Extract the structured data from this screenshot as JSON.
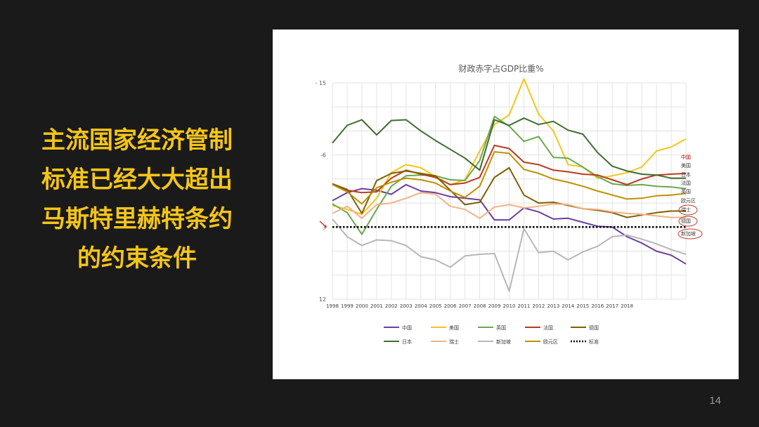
{
  "slide": {
    "lines": [
      "主流国家经济管制",
      "标准已经大大超出",
      "马斯特里赫特条约",
      "的约束条件"
    ],
    "page_number": "14"
  },
  "chart_data": {
    "type": "line",
    "title": "财政赤字占GDP比重%",
    "y_axis_inverted": true,
    "ylim": [
      -15,
      12
    ],
    "y_ticks": [
      -15,
      -6,
      3,
      12
    ],
    "y_tick_labels": [
      "- 15",
      "-6",
      "3",
      "12"
    ],
    "x": [
      "1998",
      "1999",
      "2000",
      "2001",
      "2002",
      "2003",
      "2004",
      "2005",
      "2006",
      "2007",
      "2008",
      "2009",
      "2010",
      "2011",
      "2012",
      "2013",
      "2014",
      "2015",
      "2016",
      "2017",
      "2018",
      "2019",
      "2020",
      "2021",
      "2022"
    ],
    "x_tick_labels": [
      "1998",
      "1999",
      "2000",
      "2001",
      "2002",
      "2003",
      "2004",
      "2005",
      "2006",
      "2007",
      "2008",
      "2009",
      "2010",
      "2011",
      "2012",
      "2013",
      "2014",
      "2015",
      "2016",
      "2017",
      "2018"
    ],
    "grid": true,
    "legend_position": "bottom",
    "series": [
      {
        "name": "中国",
        "color": "#6a3fa0",
        "values": [
          -0.3,
          -1.3,
          -1.8,
          -1.6,
          -1.1,
          -2.3,
          -1.5,
          -1.3,
          -0.8,
          -0.6,
          -0.4,
          2.1,
          2.1,
          0.6,
          1.1,
          2.0,
          1.9,
          2.4,
          2.9,
          3.0,
          4.2,
          5.0,
          6.0,
          6.5,
          7.6
        ]
      },
      {
        "name": "美国",
        "color": "#f5c518",
        "values": [
          0.3,
          0.8,
          1.4,
          -0.6,
          -3.8,
          -4.8,
          -4.4,
          -3.3,
          -2.3,
          -2.9,
          -6.5,
          -9.8,
          -11.0,
          -15.5,
          -11.1,
          -9.0,
          -4.8,
          -4.5,
          -3.1,
          -3.4,
          -3.8,
          -4.5,
          -6.5,
          -7.0,
          -8.0
        ]
      },
      {
        "name": "英国",
        "color": "#6aa84f",
        "values": [
          0.1,
          1.2,
          3.9,
          0.8,
          -2.1,
          -3.4,
          -3.5,
          -3.4,
          -2.9,
          -2.8,
          -5.3,
          -10.8,
          -9.6,
          -7.7,
          -8.3,
          -5.7,
          -5.6,
          -4.5,
          -3.3,
          -2.4,
          -2.2,
          -2.3,
          -2.1,
          -2.0,
          -1.8
        ]
      },
      {
        "name": "法国",
        "color": "#b83c1f",
        "values": [
          -2.4,
          -1.6,
          -1.3,
          -1.4,
          -3.1,
          -4.1,
          -3.6,
          -3.2,
          -2.3,
          -2.5,
          -3.2,
          -7.2,
          -6.8,
          -5.1,
          -4.8,
          -4.1,
          -3.9,
          -3.6,
          -3.5,
          -2.9,
          -2.3,
          -3.0,
          -3.5,
          -3.6,
          -3.7
        ]
      },
      {
        "name": "德国",
        "color": "#7f6000",
        "values": [
          -2.4,
          -1.7,
          1.3,
          -2.8,
          -3.7,
          -4.0,
          -3.7,
          -3.4,
          -1.6,
          0.2,
          -0.1,
          -3.2,
          -4.4,
          -1.0,
          0.0,
          -0.1,
          0.3,
          0.7,
          0.9,
          1.2,
          1.8,
          1.5,
          1.2,
          1.0,
          1.0
        ]
      },
      {
        "name": "日本",
        "color": "#3f6d2e",
        "values": [
          -7.5,
          -9.7,
          -10.4,
          -8.5,
          -10.3,
          -10.4,
          -9.0,
          -7.8,
          -6.7,
          -5.6,
          -4.1,
          -10.4,
          -9.7,
          -10.6,
          -9.8,
          -10.2,
          -9.1,
          -8.6,
          -6.3,
          -4.6,
          -4.0,
          -3.6,
          -3.5,
          -3.1,
          -3.1
        ]
      },
      {
        "name": "瑞士",
        "color": "#f4b183",
        "values": [
          1.3,
          0.4,
          1.9,
          0.2,
          0.0,
          -0.6,
          -1.3,
          -1.1,
          0.4,
          0.8,
          1.9,
          0.5,
          0.2,
          0.6,
          0.4,
          0.1,
          0.2,
          0.7,
          0.8,
          1.1,
          1.3,
          1.4,
          1.6,
          1.8,
          1.8
        ]
      },
      {
        "name": "新加坡",
        "color": "#b7b7b7",
        "values": [
          2.0,
          4.2,
          5.3,
          4.6,
          4.7,
          5.3,
          6.7,
          7.1,
          8.0,
          6.6,
          6.4,
          6.3,
          11.0,
          3.2,
          6.2,
          6.0,
          7.1,
          6.1,
          5.4,
          4.2,
          4.0,
          4.5,
          5.1,
          5.8,
          6.4
        ]
      },
      {
        "name": "欧元区",
        "color": "#bf9000",
        "values": [
          -2.3,
          -1.4,
          0.1,
          -1.9,
          -2.6,
          -3.1,
          -2.9,
          -2.5,
          -1.5,
          -0.7,
          -2.1,
          -6.4,
          -6.2,
          -4.2,
          -3.7,
          -3.0,
          -2.6,
          -2.1,
          -1.5,
          -1.0,
          -0.5,
          -0.6,
          -0.9,
          -1.0,
          -1.2
        ]
      },
      {
        "name": "标准",
        "color": "#000000",
        "dashed": true,
        "values": [
          3,
          3,
          3,
          3,
          3,
          3,
          3,
          3,
          3,
          3,
          3,
          3,
          3,
          3,
          3,
          3,
          3,
          3,
          3,
          3,
          3,
          3,
          3,
          3,
          3
        ]
      }
    ],
    "right_labels": [
      "中国",
      "美国",
      "日本",
      "法国",
      "英国",
      "欧元区",
      "瑞士",
      "德国",
      "新加坡"
    ]
  }
}
